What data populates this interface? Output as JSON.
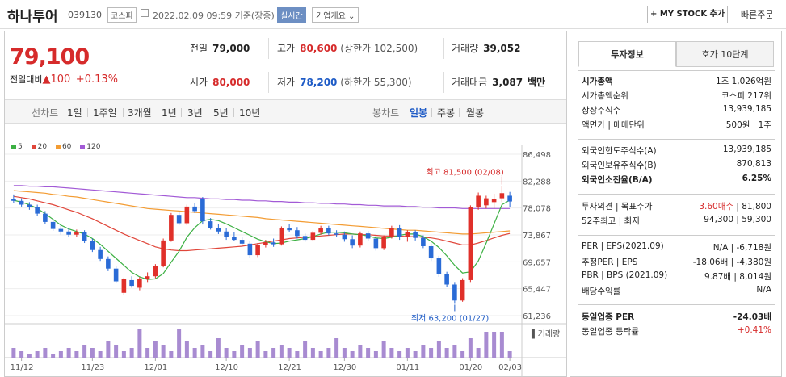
{
  "header": {
    "name": "하나투어",
    "code": "039130",
    "market": "코스피",
    "datetime": "2022.02.09 09:59",
    "basis": "기준(장중)",
    "realtime": "실시간",
    "company_info": "기업개요",
    "mystock_button": "+ MY STOCK 추가",
    "quick_order": "빠른주문"
  },
  "quote": {
    "price": "79,100",
    "change_label": "전일대비",
    "change": "▲100",
    "change_pct": "+0.13%",
    "prev_label": "전일",
    "prev": "79,000",
    "high_label": "고가",
    "high": "80,600",
    "high_sub": "(상한가 102,500)",
    "volume_label": "거래량",
    "volume": "39,052",
    "open_label": "시가",
    "open": "80,000",
    "low_label": "저가",
    "low": "78,200",
    "low_sub": "(하한가 55,300)",
    "amount_label": "거래대금",
    "amount": "3,087",
    "amount_unit": "백만"
  },
  "periods": {
    "line_chart": "선차트",
    "line_items": [
      "1일",
      "1주일",
      "3개월",
      "1년",
      "3년",
      "5년",
      "10년"
    ],
    "candle_chart": "봉차트",
    "candle_items": [
      "일봉",
      "주봉",
      "월봉"
    ],
    "active_candle": "일봉"
  },
  "chart_data": {
    "type": "candlestick",
    "legend": [
      "5",
      "20",
      "60",
      "120"
    ],
    "colors": {
      "ma5": "#3cb043",
      "ma20": "#e0463a",
      "ma60": "#f39c33",
      "ma120": "#a25ad6",
      "up": "#e0302a",
      "down": "#2a6bd6",
      "volume": "#a88bd1"
    },
    "y_ticks": [
      "86,498",
      "82,288",
      "78,078",
      "73,867",
      "69,657",
      "65,447",
      "61,236"
    ],
    "ylim": [
      61236,
      86498
    ],
    "x_ticks": [
      "11/12",
      "11/23",
      "12/01",
      "12/10",
      "12/21",
      "12/30",
      "01/11",
      "01/20",
      "02/03"
    ],
    "max_annotation": "최고 81,500 (02/08)",
    "min_annotation": "최저 63,200 (01/27)",
    "volume_label": "거래량",
    "candles": [
      [
        79500,
        80200,
        78800,
        79200
      ],
      [
        79200,
        79600,
        78300,
        78600
      ],
      [
        78600,
        79000,
        77800,
        78200
      ],
      [
        78200,
        78600,
        76900,
        77200
      ],
      [
        77200,
        77600,
        75600,
        75900
      ],
      [
        75900,
        76400,
        74500,
        74800
      ],
      [
        74800,
        75400,
        73900,
        74400
      ],
      [
        74400,
        75000,
        73600,
        73900
      ],
      [
        73900,
        74700,
        73500,
        74300
      ],
      [
        74300,
        74600,
        72600,
        72900
      ],
      [
        72900,
        73300,
        71200,
        71500
      ],
      [
        71500,
        72000,
        69800,
        70100
      ],
      [
        70100,
        70500,
        68200,
        68600
      ],
      [
        68600,
        69000,
        66300,
        66600
      ],
      [
        64800,
        67200,
        64500,
        67000
      ],
      [
        66800,
        67400,
        65600,
        65900
      ],
      [
        65600,
        67300,
        65200,
        67000
      ],
      [
        67000,
        68000,
        66500,
        67400
      ],
      [
        67400,
        69300,
        67100,
        69000
      ],
      [
        69000,
        73300,
        68800,
        73000
      ],
      [
        73000,
        77300,
        72800,
        77000
      ],
      [
        77000,
        77600,
        75400,
        75700
      ],
      [
        75700,
        78600,
        75400,
        78300
      ],
      [
        78300,
        78800,
        77300,
        77600
      ],
      [
        79500,
        79800,
        75500,
        76000
      ],
      [
        76000,
        76500,
        74700,
        75000
      ],
      [
        75000,
        75600,
        74000,
        74400
      ],
      [
        74400,
        74900,
        73100,
        73500
      ],
      [
        73500,
        74300,
        72900,
        73100
      ],
      [
        73100,
        73600,
        72200,
        72500
      ],
      [
        72500,
        72900,
        70300,
        70700
      ],
      [
        70700,
        72600,
        70400,
        72300
      ],
      [
        72300,
        73100,
        71900,
        72700
      ],
      [
        72700,
        73300,
        72000,
        72400
      ],
      [
        72400,
        75200,
        72200,
        74900
      ],
      [
        74900,
        75600,
        74300,
        74600
      ],
      [
        74600,
        75100,
        73300,
        73700
      ],
      [
        73700,
        74100,
        72800,
        73100
      ],
      [
        73100,
        74500,
        72900,
        74200
      ],
      [
        74200,
        75300,
        73900,
        75000
      ],
      [
        75000,
        75300,
        73800,
        74100
      ],
      [
        74100,
        74600,
        73500,
        73900
      ],
      [
        73900,
        74400,
        72800,
        73200
      ],
      [
        73200,
        73800,
        71800,
        72200
      ],
      [
        72200,
        74400,
        71900,
        74100
      ],
      [
        74100,
        74500,
        72900,
        73300
      ],
      [
        73300,
        73700,
        71400,
        71800
      ],
      [
        71800,
        73800,
        71500,
        73500
      ],
      [
        73500,
        75300,
        73300,
        75000
      ],
      [
        75000,
        75400,
        73100,
        73500
      ],
      [
        73500,
        74600,
        72800,
        74300
      ],
      [
        74300,
        74600,
        73000,
        73400
      ],
      [
        73400,
        73800,
        71800,
        72100
      ],
      [
        72100,
        72500,
        69800,
        70200
      ],
      [
        70200,
        70600,
        67300,
        67700
      ],
      [
        67700,
        68100,
        65700,
        66100
      ],
      [
        66100,
        66500,
        63200,
        63600
      ],
      [
        63600,
        67100,
        63400,
        66800
      ],
      [
        66800,
        78500,
        66500,
        78200
      ],
      [
        78200,
        80500,
        77800,
        80000
      ],
      [
        78500,
        80000,
        78000,
        79600
      ],
      [
        79000,
        80300,
        78000,
        79500
      ],
      [
        79600,
        81500,
        79000,
        80400
      ],
      [
        80000,
        80600,
        78200,
        79100
      ]
    ],
    "ma5": [
      79300,
      79000,
      78600,
      78000,
      77200,
      76300,
      75400,
      74800,
      74400,
      74000,
      73300,
      72400,
      71300,
      70200,
      69100,
      68000,
      67300,
      66900,
      67000,
      67800,
      69600,
      71300,
      73500,
      75000,
      76100,
      76300,
      76100,
      75600,
      75000,
      74400,
      73800,
      73200,
      72800,
      72500,
      72600,
      72900,
      73100,
      73300,
      73600,
      74000,
      74300,
      74300,
      74200,
      74000,
      73900,
      73700,
      73400,
      73300,
      73500,
      73800,
      74000,
      74000,
      73600,
      72900,
      71900,
      70600,
      69100,
      67900,
      68100,
      69800,
      72600,
      75600,
      78600,
      79300
    ],
    "ma20": [
      79900,
      79700,
      79500,
      79200,
      78900,
      78600,
      78200,
      77800,
      77400,
      76900,
      76400,
      75800,
      75200,
      74600,
      74000,
      73500,
      73000,
      72500,
      72000,
      71700,
      71500,
      71400,
      71400,
      71500,
      71600,
      71700,
      71800,
      71900,
      72000,
      72100,
      72300,
      72500,
      72700,
      72900,
      73100,
      73300,
      73400,
      73500,
      73600,
      73700,
      73800,
      73900,
      74000,
      74000,
      73900,
      73900,
      73800,
      73700,
      73700,
      73700,
      73600,
      73600,
      73500,
      73400,
      73200,
      72900,
      72600,
      72300,
      72300,
      72600,
      73000,
      73400,
      73800,
      74100
    ],
    "ma60": [
      80800,
      80700,
      80600,
      80500,
      80400,
      80200,
      80100,
      79900,
      79800,
      79600,
      79400,
      79200,
      79000,
      78800,
      78600,
      78400,
      78200,
      78000,
      77900,
      77800,
      77700,
      77600,
      77500,
      77400,
      77300,
      77200,
      77100,
      77000,
      76900,
      76800,
      76700,
      76600,
      76400,
      76300,
      76200,
      76100,
      76000,
      75900,
      75800,
      75700,
      75600,
      75500,
      75400,
      75300,
      75200,
      75100,
      75000,
      74900,
      74800,
      74700,
      74600,
      74600,
      74500,
      74400,
      74300,
      74200,
      74100,
      74000,
      74000,
      74100,
      74200,
      74300,
      74400,
      74500
    ],
    "ma120": [
      81600,
      81600,
      81500,
      81500,
      81400,
      81400,
      81300,
      81200,
      81100,
      81000,
      80900,
      80800,
      80700,
      80600,
      80500,
      80400,
      80300,
      80200,
      80100,
      80000,
      79900,
      79800,
      79700,
      79700,
      79600,
      79500,
      79500,
      79400,
      79400,
      79300,
      79300,
      79200,
      79200,
      79100,
      79100,
      79000,
      79000,
      78900,
      78900,
      78800,
      78800,
      78700,
      78700,
      78600,
      78600,
      78500,
      78500,
      78400,
      78400,
      78400,
      78300,
      78300,
      78200,
      78200,
      78100,
      78100,
      78100,
      78000,
      78000,
      78000,
      78000,
      78000,
      78000,
      78000
    ],
    "volume": [
      3,
      2,
      1,
      2,
      3,
      1,
      2,
      3,
      2,
      4,
      3,
      2,
      5,
      4,
      2,
      3,
      9,
      3,
      5,
      4,
      2,
      9,
      5,
      3,
      4,
      2,
      6,
      3,
      2,
      4,
      3,
      5,
      2,
      3,
      4,
      3,
      2,
      5,
      3,
      2,
      3,
      6,
      3,
      2,
      4,
      3,
      2,
      5,
      3,
      2,
      3,
      2,
      4,
      3,
      5,
      3,
      4,
      2,
      6,
      3,
      8,
      8,
      8,
      2
    ]
  },
  "invest": {
    "tabs": [
      "투자정보",
      "호가 10단계"
    ],
    "market_cap_label": "시가총액",
    "market_cap": "1조 1,026억원",
    "market_cap_rank_label": "시가총액순위",
    "market_cap_rank": "코스피 217위",
    "shares_label": "상장주식수",
    "shares": "13,939,185",
    "face_label": "액면가 | 매매단위",
    "face": "500원 | 1주",
    "foreign_limit_label": "외국인한도주식수(A)",
    "foreign_limit": "13,939,185",
    "foreign_hold_label": "외국인보유주식수(B)",
    "foreign_hold": "870,813",
    "foreign_ratio_label": "외국인소진율(B/A)",
    "foreign_ratio": "6.25%",
    "opinion_label": "투자의견 | 목표주가",
    "opinion": "3.60매수",
    "target": "| 81,800",
    "w52_label": "52주최고 | 최저",
    "w52": "94,300 | 59,300",
    "per_label": "PER | EPS(2021.09)",
    "per": "N/A | -6,718원",
    "est_per_label": "추정PER | EPS",
    "est_per": "-18.06배 | -4,380원",
    "pbr_label": "PBR | BPS (2021.09)",
    "pbr": "9.87배 | 8,014원",
    "div_label": "배당수익률",
    "div": "N/A",
    "sector_per_label": "동일업종 PER",
    "sector_per": "-24.03배",
    "sector_chg_label": "동일업종 등락률",
    "sector_chg": "+0.41%"
  }
}
